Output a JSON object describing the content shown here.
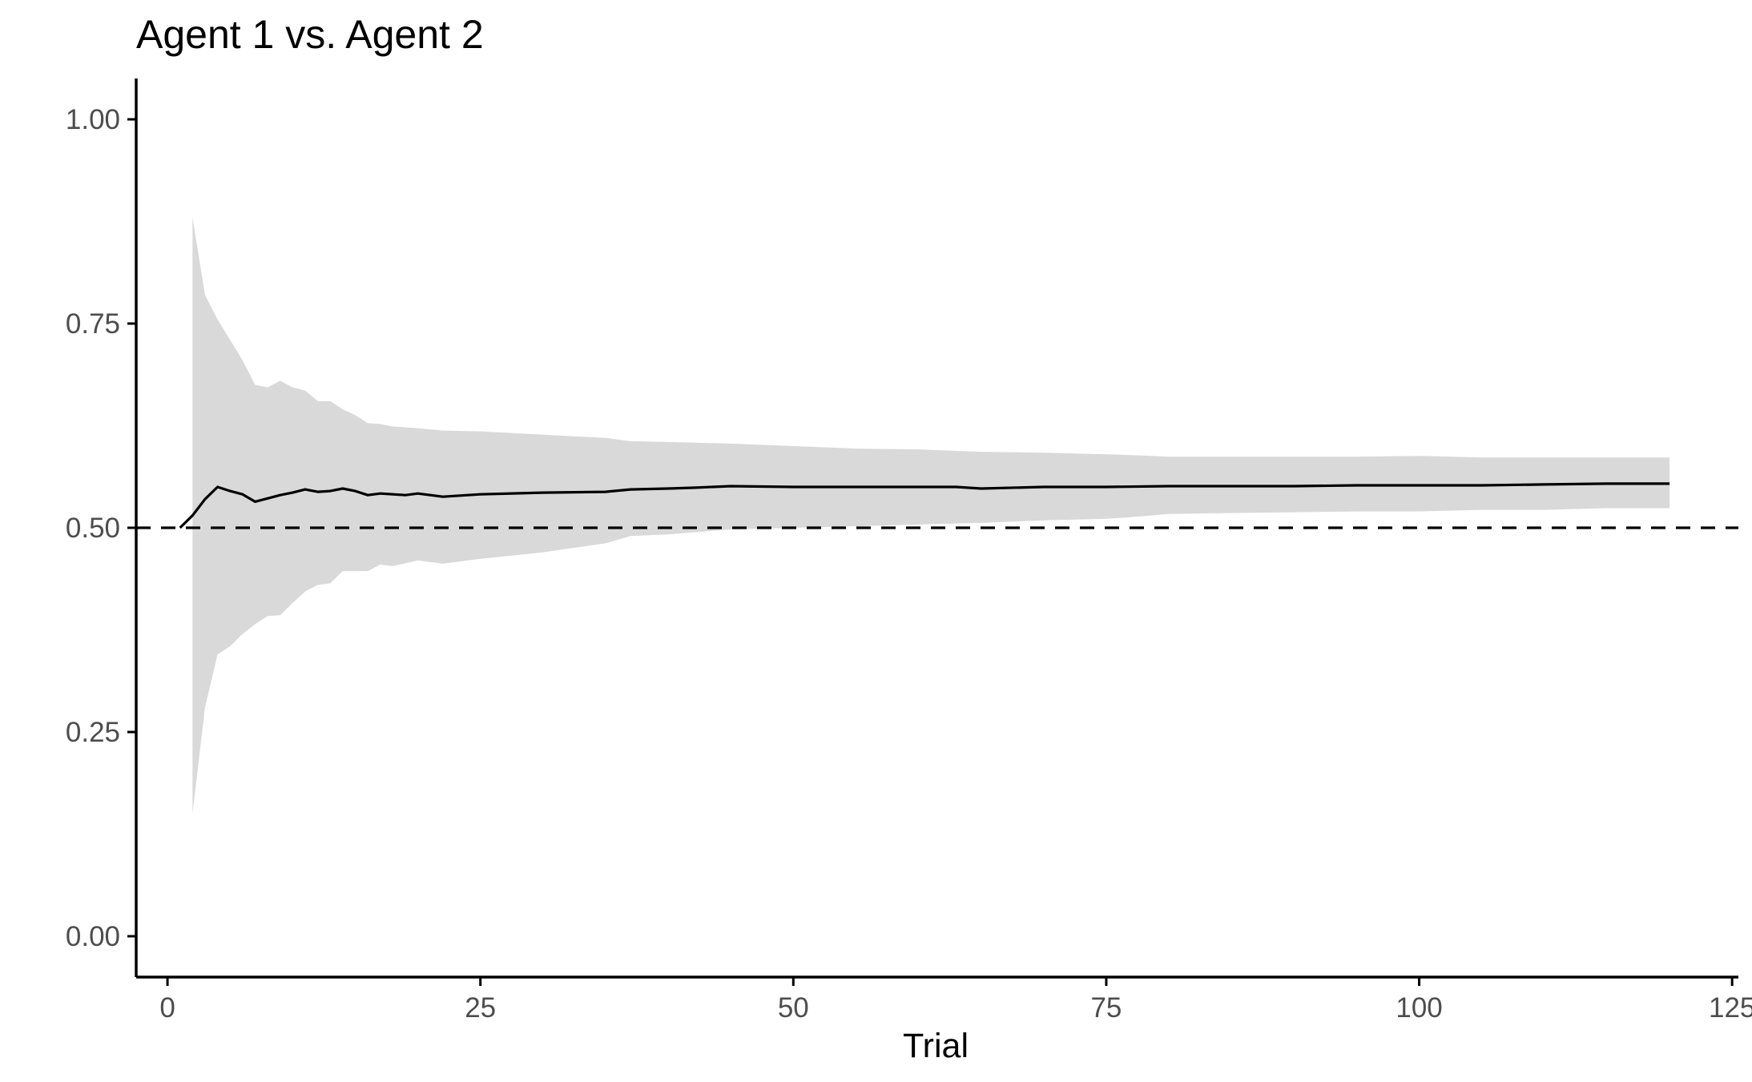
{
  "chart_data": {
    "type": "line",
    "title": "Agent 1 vs. Agent 2",
    "xlabel": "Trial",
    "ylabel": "",
    "xlim": [
      -2.5,
      125.5
    ],
    "ylim": [
      -0.05,
      1.05
    ],
    "x_ticks": [
      0,
      25,
      50,
      75,
      100,
      125
    ],
    "x_tick_labels": [
      "0",
      "25",
      "50",
      "75",
      "100",
      "125"
    ],
    "y_ticks": [
      0,
      0.25,
      0.5,
      0.75,
      1.0
    ],
    "y_tick_labels": [
      "0.00",
      "0.25",
      "0.50",
      "0.75",
      "1.00"
    ],
    "reference_line": {
      "y": 0.5,
      "style": "dashed"
    },
    "grid": false,
    "legend": "none",
    "colors": {
      "band": "#d9d9d9",
      "line": "#000000",
      "tick_label": "#4d4d4d"
    },
    "series": [
      {
        "type": "line",
        "x": [
          1,
          2,
          3,
          4,
          5,
          6,
          7,
          8,
          9,
          10,
          11,
          12,
          13,
          14,
          15,
          16,
          17,
          18,
          19,
          20,
          22,
          25,
          30,
          35,
          37,
          40,
          42,
          45,
          50,
          55,
          60,
          63,
          65,
          70,
          75,
          80,
          85,
          90,
          95,
          100,
          105,
          110,
          115,
          120
        ],
        "values": [
          0.5,
          0.515,
          0.535,
          0.55,
          0.545,
          0.541,
          0.532,
          0.536,
          0.54,
          0.543,
          0.547,
          0.544,
          0.545,
          0.548,
          0.545,
          0.54,
          0.542,
          0.541,
          0.54,
          0.542,
          0.538,
          0.541,
          0.543,
          0.544,
          0.547,
          0.548,
          0.549,
          0.551,
          0.55,
          0.55,
          0.55,
          0.55,
          0.548,
          0.55,
          0.55,
          0.551,
          0.551,
          0.551,
          0.552,
          0.552,
          0.552,
          0.553,
          0.554,
          0.554
        ]
      },
      {
        "type": "area",
        "x": [
          2,
          3,
          4,
          5,
          6,
          7,
          8,
          9,
          10,
          11,
          12,
          13,
          14,
          15,
          16,
          17,
          18,
          20,
          22,
          25,
          30,
          35,
          37,
          40,
          45,
          50,
          55,
          60,
          65,
          70,
          75,
          77,
          80,
          85,
          90,
          95,
          100,
          105,
          110,
          115,
          120
        ],
        "lower": [
          0.15,
          0.28,
          0.345,
          0.355,
          0.37,
          0.382,
          0.392,
          0.393,
          0.408,
          0.422,
          0.43,
          0.432,
          0.447,
          0.447,
          0.447,
          0.455,
          0.453,
          0.46,
          0.456,
          0.462,
          0.47,
          0.481,
          0.49,
          0.492,
          0.498,
          0.5,
          0.502,
          0.504,
          0.506,
          0.509,
          0.511,
          0.513,
          0.517,
          0.518,
          0.519,
          0.52,
          0.52,
          0.522,
          0.522,
          0.524,
          0.524
        ],
        "upper": [
          0.88,
          0.785,
          0.755,
          0.73,
          0.705,
          0.675,
          0.672,
          0.68,
          0.672,
          0.668,
          0.655,
          0.655,
          0.645,
          0.638,
          0.628,
          0.627,
          0.624,
          0.622,
          0.619,
          0.618,
          0.614,
          0.61,
          0.606,
          0.605,
          0.603,
          0.6,
          0.597,
          0.596,
          0.593,
          0.592,
          0.59,
          0.589,
          0.587,
          0.587,
          0.587,
          0.587,
          0.588,
          0.586,
          0.586,
          0.586,
          0.586
        ]
      }
    ]
  }
}
